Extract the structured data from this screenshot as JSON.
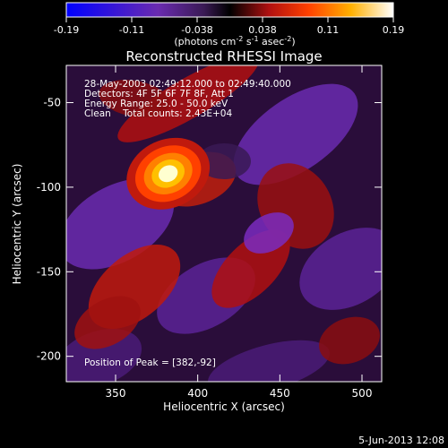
{
  "colorbar": {
    "ticks": [
      "-0.19",
      "-0.11",
      "-0.038",
      "0.038",
      "0.11",
      "0.19"
    ],
    "unit_main": "(photons cm",
    "unit_e1": "-2",
    "unit_mid": " s",
    "unit_e2": "-1",
    "unit_tail": " asec",
    "unit_e3": "-2",
    "unit_close": ")",
    "colors": [
      "#0000ff",
      "#6a2bb0",
      "#3a1a55",
      "#000000",
      "#b01010",
      "#ff4000",
      "#ffb000",
      "#ffffff"
    ]
  },
  "chart_data": {
    "type": "heatmap",
    "title": "Reconstructed RHESSI Image",
    "xlabel": "Heliocentric X (arcsec)",
    "ylabel": "Heliocentric Y (arcsec)",
    "xlim": [
      320,
      512
    ],
    "ylim": [
      -215,
      -28
    ],
    "x_ticks": [
      350,
      400,
      450,
      500
    ],
    "y_ticks": [
      -50,
      -100,
      -150,
      -200
    ],
    "value_range": [
      -0.19,
      0.19
    ],
    "peak": {
      "x": 382,
      "y": -92,
      "value": 0.19
    },
    "info_lines": [
      "28-May-2003 02:49:12.000 to 02:49:40.000",
      "Detectors: 4F 5F 6F 7F 8F, Att 1",
      "Energy Range: 25.0 - 50.0 keV",
      "Clean    Total counts: 2.43E+04"
    ],
    "peak_label": "Position of Peak = [382,-92]"
  },
  "footer": {
    "date": "5-Jun-2013 12:08"
  }
}
